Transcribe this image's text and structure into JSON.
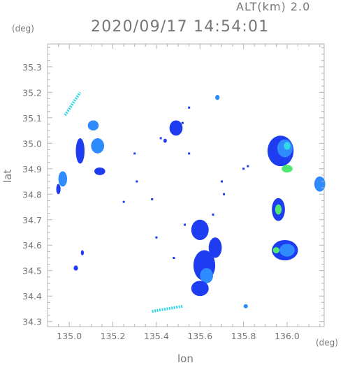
{
  "header": {
    "altitude": "ALT(km) 2.0",
    "datetime": "2020/09/17 14:54:01",
    "y_unit": "(deg)",
    "x_unit": "(deg)"
  },
  "axes": {
    "xlabel": "lon",
    "ylabel": "lat",
    "xlim": [
      134.9,
      136.17
    ],
    "ylim": [
      34.28,
      35.39
    ],
    "xticks": [
      135.0,
      135.2,
      135.4,
      135.6,
      135.8,
      136.0
    ],
    "xtick_labels": [
      "135.0",
      "135.2",
      "135.4",
      "135.6",
      "135.8",
      "136.0"
    ],
    "yticks": [
      34.3,
      34.4,
      34.5,
      34.6,
      34.7,
      34.8,
      34.9,
      35.0,
      35.1,
      35.2,
      35.3
    ],
    "ytick_labels": [
      "34.3",
      "34.4",
      "34.5",
      "34.6",
      "34.7",
      "34.8",
      "34.9",
      "35.0",
      "35.1",
      "35.2",
      "35.3"
    ]
  },
  "colors": {
    "weak": "#1e3cf0",
    "light": "#2f8cff",
    "moderate": "#30d8e8",
    "strong": "#50e870",
    "frame": "#b4b4b4"
  },
  "echoes": [
    {
      "lon": 134.95,
      "lat": 34.82,
      "rx": 0.01,
      "ry": 0.02,
      "level": "weak"
    },
    {
      "lon": 134.97,
      "lat": 34.86,
      "rx": 0.02,
      "ry": 0.03,
      "level": "light"
    },
    {
      "lon": 135.05,
      "lat": 34.97,
      "rx": 0.02,
      "ry": 0.05,
      "level": "weak"
    },
    {
      "lon": 135.13,
      "lat": 34.99,
      "rx": 0.03,
      "ry": 0.03,
      "level": "light"
    },
    {
      "lon": 135.11,
      "lat": 35.07,
      "rx": 0.025,
      "ry": 0.02,
      "level": "light"
    },
    {
      "lon": 135.14,
      "lat": 34.89,
      "rx": 0.025,
      "ry": 0.015,
      "level": "weak"
    },
    {
      "lon": 135.03,
      "lat": 34.51,
      "rx": 0.01,
      "ry": 0.01,
      "level": "weak"
    },
    {
      "lon": 135.06,
      "lat": 34.57,
      "rx": 0.007,
      "ry": 0.01,
      "level": "weak"
    },
    {
      "lon": 135.68,
      "lat": 35.18,
      "rx": 0.01,
      "ry": 0.01,
      "level": "light"
    },
    {
      "lon": 135.49,
      "lat": 35.06,
      "rx": 0.03,
      "ry": 0.03,
      "level": "weak"
    },
    {
      "lon": 135.44,
      "lat": 35.01,
      "rx": 0.008,
      "ry": 0.008,
      "level": "weak"
    },
    {
      "lon": 135.6,
      "lat": 34.66,
      "rx": 0.04,
      "ry": 0.04,
      "level": "weak"
    },
    {
      "lon": 135.67,
      "lat": 34.59,
      "rx": 0.03,
      "ry": 0.04,
      "level": "weak"
    },
    {
      "lon": 135.62,
      "lat": 34.52,
      "rx": 0.05,
      "ry": 0.06,
      "level": "weak"
    },
    {
      "lon": 135.63,
      "lat": 34.48,
      "rx": 0.03,
      "ry": 0.03,
      "level": "light"
    },
    {
      "lon": 135.6,
      "lat": 34.43,
      "rx": 0.04,
      "ry": 0.03,
      "level": "weak"
    },
    {
      "lon": 135.81,
      "lat": 34.36,
      "rx": 0.01,
      "ry": 0.008,
      "level": "light"
    },
    {
      "lon": 135.97,
      "lat": 34.97,
      "rx": 0.06,
      "ry": 0.06,
      "level": "weak"
    },
    {
      "lon": 135.99,
      "lat": 34.98,
      "rx": 0.035,
      "ry": 0.035,
      "level": "light"
    },
    {
      "lon": 136.0,
      "lat": 34.99,
      "rx": 0.015,
      "ry": 0.015,
      "level": "moderate"
    },
    {
      "lon": 136.0,
      "lat": 34.9,
      "rx": 0.025,
      "ry": 0.015,
      "level": "strong"
    },
    {
      "lon": 136.15,
      "lat": 34.84,
      "rx": 0.025,
      "ry": 0.03,
      "level": "light"
    },
    {
      "lon": 135.96,
      "lat": 34.74,
      "rx": 0.03,
      "ry": 0.045,
      "level": "weak"
    },
    {
      "lon": 135.96,
      "lat": 34.74,
      "rx": 0.015,
      "ry": 0.02,
      "level": "strong"
    },
    {
      "lon": 135.99,
      "lat": 34.58,
      "rx": 0.06,
      "ry": 0.04,
      "level": "weak"
    },
    {
      "lon": 136.0,
      "lat": 34.58,
      "rx": 0.035,
      "ry": 0.025,
      "level": "light"
    },
    {
      "lon": 135.95,
      "lat": 34.58,
      "rx": 0.015,
      "ry": 0.012,
      "level": "strong"
    }
  ],
  "speckles": [
    {
      "lon": 135.3,
      "lat": 34.96
    },
    {
      "lon": 135.42,
      "lat": 35.02
    },
    {
      "lon": 135.55,
      "lat": 34.96
    },
    {
      "lon": 135.52,
      "lat": 35.08
    },
    {
      "lon": 135.8,
      "lat": 34.9
    },
    {
      "lon": 135.82,
      "lat": 34.91
    },
    {
      "lon": 135.7,
      "lat": 34.85
    },
    {
      "lon": 135.71,
      "lat": 34.8
    },
    {
      "lon": 135.66,
      "lat": 34.72
    },
    {
      "lon": 135.25,
      "lat": 34.77
    },
    {
      "lon": 135.38,
      "lat": 34.78
    },
    {
      "lon": 135.31,
      "lat": 34.85
    },
    {
      "lon": 135.55,
      "lat": 35.14
    },
    {
      "lon": 135.48,
      "lat": 34.55
    },
    {
      "lon": 135.4,
      "lat": 34.63
    },
    {
      "lon": 135.53,
      "lat": 34.68
    }
  ],
  "streaks": [
    {
      "lon1": 134.98,
      "lat1": 35.11,
      "lon2": 135.05,
      "lat2": 35.2,
      "level": "moderate"
    },
    {
      "lon1": 135.38,
      "lat1": 34.34,
      "lon2": 135.52,
      "lat2": 34.36,
      "level": "moderate"
    }
  ]
}
